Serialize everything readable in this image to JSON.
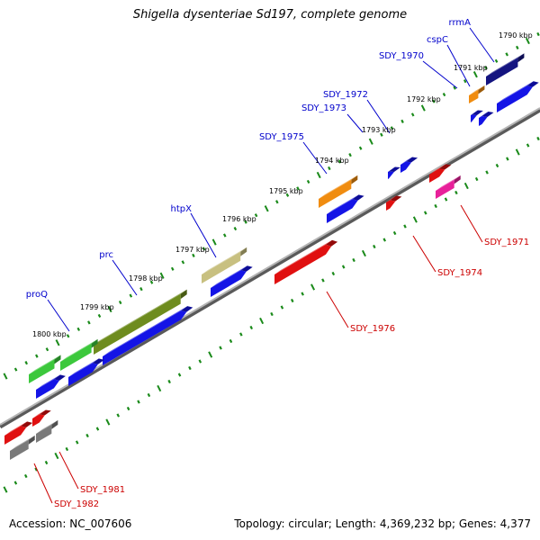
{
  "header": {
    "title": "Shigella dysenteriae Sd197, complete genome"
  },
  "footer": {
    "accession": "Accession: NC_007606",
    "summary": "Topology: circular; Length: 4,369,232 bp; Genes: 4,377"
  },
  "kbp_labels": [
    "1790 kbp",
    "1791 kbp",
    "1792 kbp",
    "1793 kbp",
    "1794 kbp",
    "1795 kbp",
    "1796 kbp",
    "1797 kbp",
    "1798 kbp",
    "1799 kbp",
    "1800 kbp"
  ],
  "forward_gene_labels": [
    "rrmA",
    "cspC",
    "SDY_1970",
    "SDY_1972",
    "SDY_1973",
    "SDY_1975",
    "htpX",
    "prc",
    "proQ"
  ],
  "reverse_gene_labels": [
    "SDY_1971",
    "SDY_1974",
    "SDY_1976",
    "SDY_1981",
    "SDY_1982"
  ],
  "colors": {
    "forward_label": "#0000cc",
    "reverse_label": "#cc0000",
    "tick_green": "#1a8a1a",
    "axis": "#8c8c8c",
    "cds_blue": "#1414e6",
    "red": "#e01010",
    "magenta": "#e8209a",
    "orange": "#f08c10",
    "navy": "#141480",
    "olive": "#6e8c1e",
    "khaki": "#c8c080",
    "green": "#3cc83c",
    "gray": "#7a7a7a"
  }
}
